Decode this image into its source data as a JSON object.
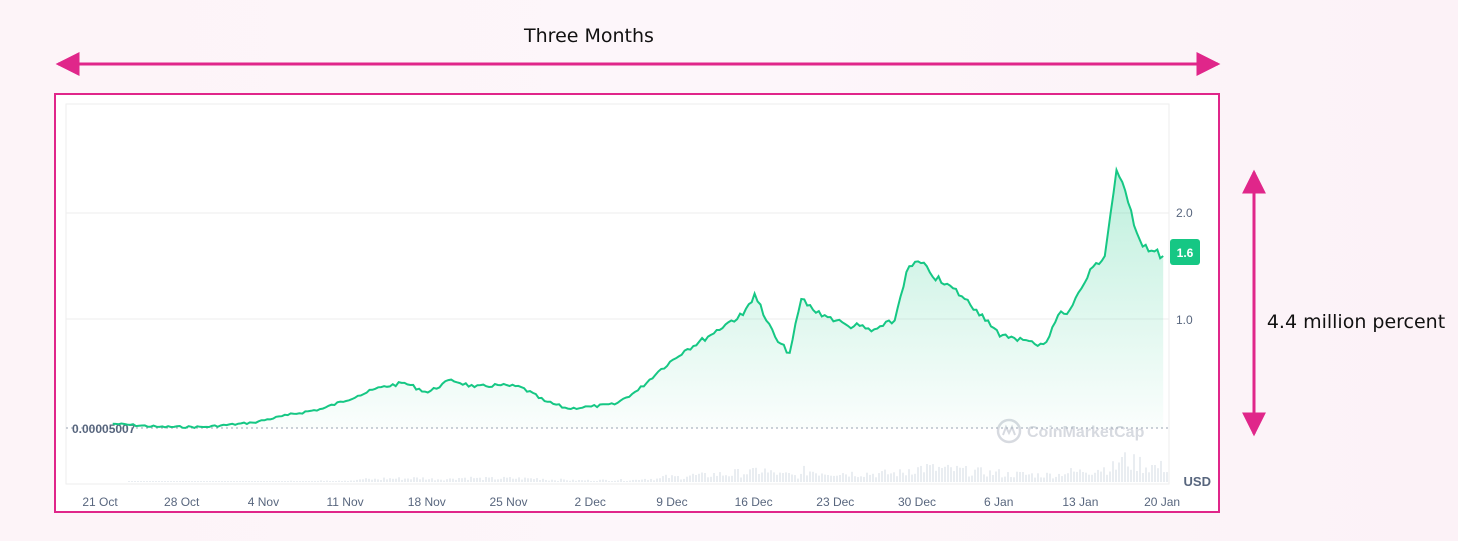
{
  "annotations": {
    "top_label": "Three Months",
    "right_label": "4.4 million percent"
  },
  "colors": {
    "annotation": "#e0268a",
    "line": "#16c784",
    "grid": "#eeeeee",
    "axis_text": "#58667e",
    "badge_bg": "#16c784",
    "badge_text": "#ffffff"
  },
  "chart_data": {
    "type": "area",
    "x_ticks": [
      "21 Oct",
      "28 Oct",
      "4 Nov",
      "11 Nov",
      "18 Nov",
      "25 Nov",
      "2 Dec",
      "9 Dec",
      "16 Dec",
      "23 Dec",
      "30 Dec",
      "6 Jan",
      "13 Jan",
      "20 Jan"
    ],
    "y_ticks": [
      "2.0",
      "1.0"
    ],
    "baseline_label": "0.00005007",
    "current_value_label": "1.6",
    "currency_label": "USD",
    "watermark": "CoinMarketCap",
    "ylim": [
      0,
      3.0
    ],
    "grid": true,
    "series": [
      {
        "x": [
          "2024-10-25",
          "2024-10-29",
          "2024-11-02",
          "2024-11-06",
          "2024-11-09",
          "2024-11-12",
          "2024-11-15",
          "2024-11-17",
          "2024-11-19",
          "2024-11-21",
          "2024-11-23",
          "2024-11-25",
          "2024-11-27",
          "2024-11-29",
          "2024-12-01",
          "2024-12-03",
          "2024-12-05",
          "2024-12-07",
          "2024-12-09",
          "2024-12-11",
          "2024-12-13",
          "2024-12-15",
          "2024-12-17",
          "2024-12-18",
          "2024-12-19",
          "2024-12-20",
          "2024-12-21",
          "2024-12-22",
          "2024-12-23",
          "2024-12-24",
          "2024-12-25",
          "2024-12-26",
          "2024-12-27",
          "2024-12-28",
          "2024-12-29",
          "2024-12-30",
          "2024-12-31",
          "2025-01-01",
          "2025-01-02",
          "2025-01-03",
          "2025-01-04",
          "2025-01-05",
          "2025-01-06",
          "2025-01-07",
          "2025-01-08",
          "2025-01-09",
          "2025-01-10",
          "2025-01-11",
          "2025-01-12",
          "2025-01-13",
          "2025-01-14",
          "2025-01-15",
          "2025-01-16",
          "2025-01-17",
          "2025-01-18",
          "2025-01-19",
          "2025-01-20",
          "2025-01-21",
          "2025-01-22",
          "2025-01-23"
        ],
        "y": [
          0.04,
          0.01,
          0.01,
          0.05,
          0.12,
          0.18,
          0.3,
          0.38,
          0.42,
          0.33,
          0.45,
          0.38,
          0.4,
          0.38,
          0.25,
          0.18,
          0.2,
          0.22,
          0.35,
          0.55,
          0.72,
          0.85,
          1.0,
          1.05,
          1.25,
          1.0,
          0.8,
          0.7,
          1.2,
          1.1,
          1.05,
          1.0,
          0.95,
          0.95,
          0.9,
          0.95,
          1.0,
          1.45,
          1.55,
          1.45,
          1.35,
          1.3,
          1.2,
          1.1,
          1.0,
          0.85,
          0.85,
          0.82,
          0.78,
          0.8,
          1.05,
          1.1,
          1.3,
          1.5,
          1.6,
          2.4,
          2.1,
          1.75,
          1.65,
          1.6
        ]
      }
    ]
  }
}
